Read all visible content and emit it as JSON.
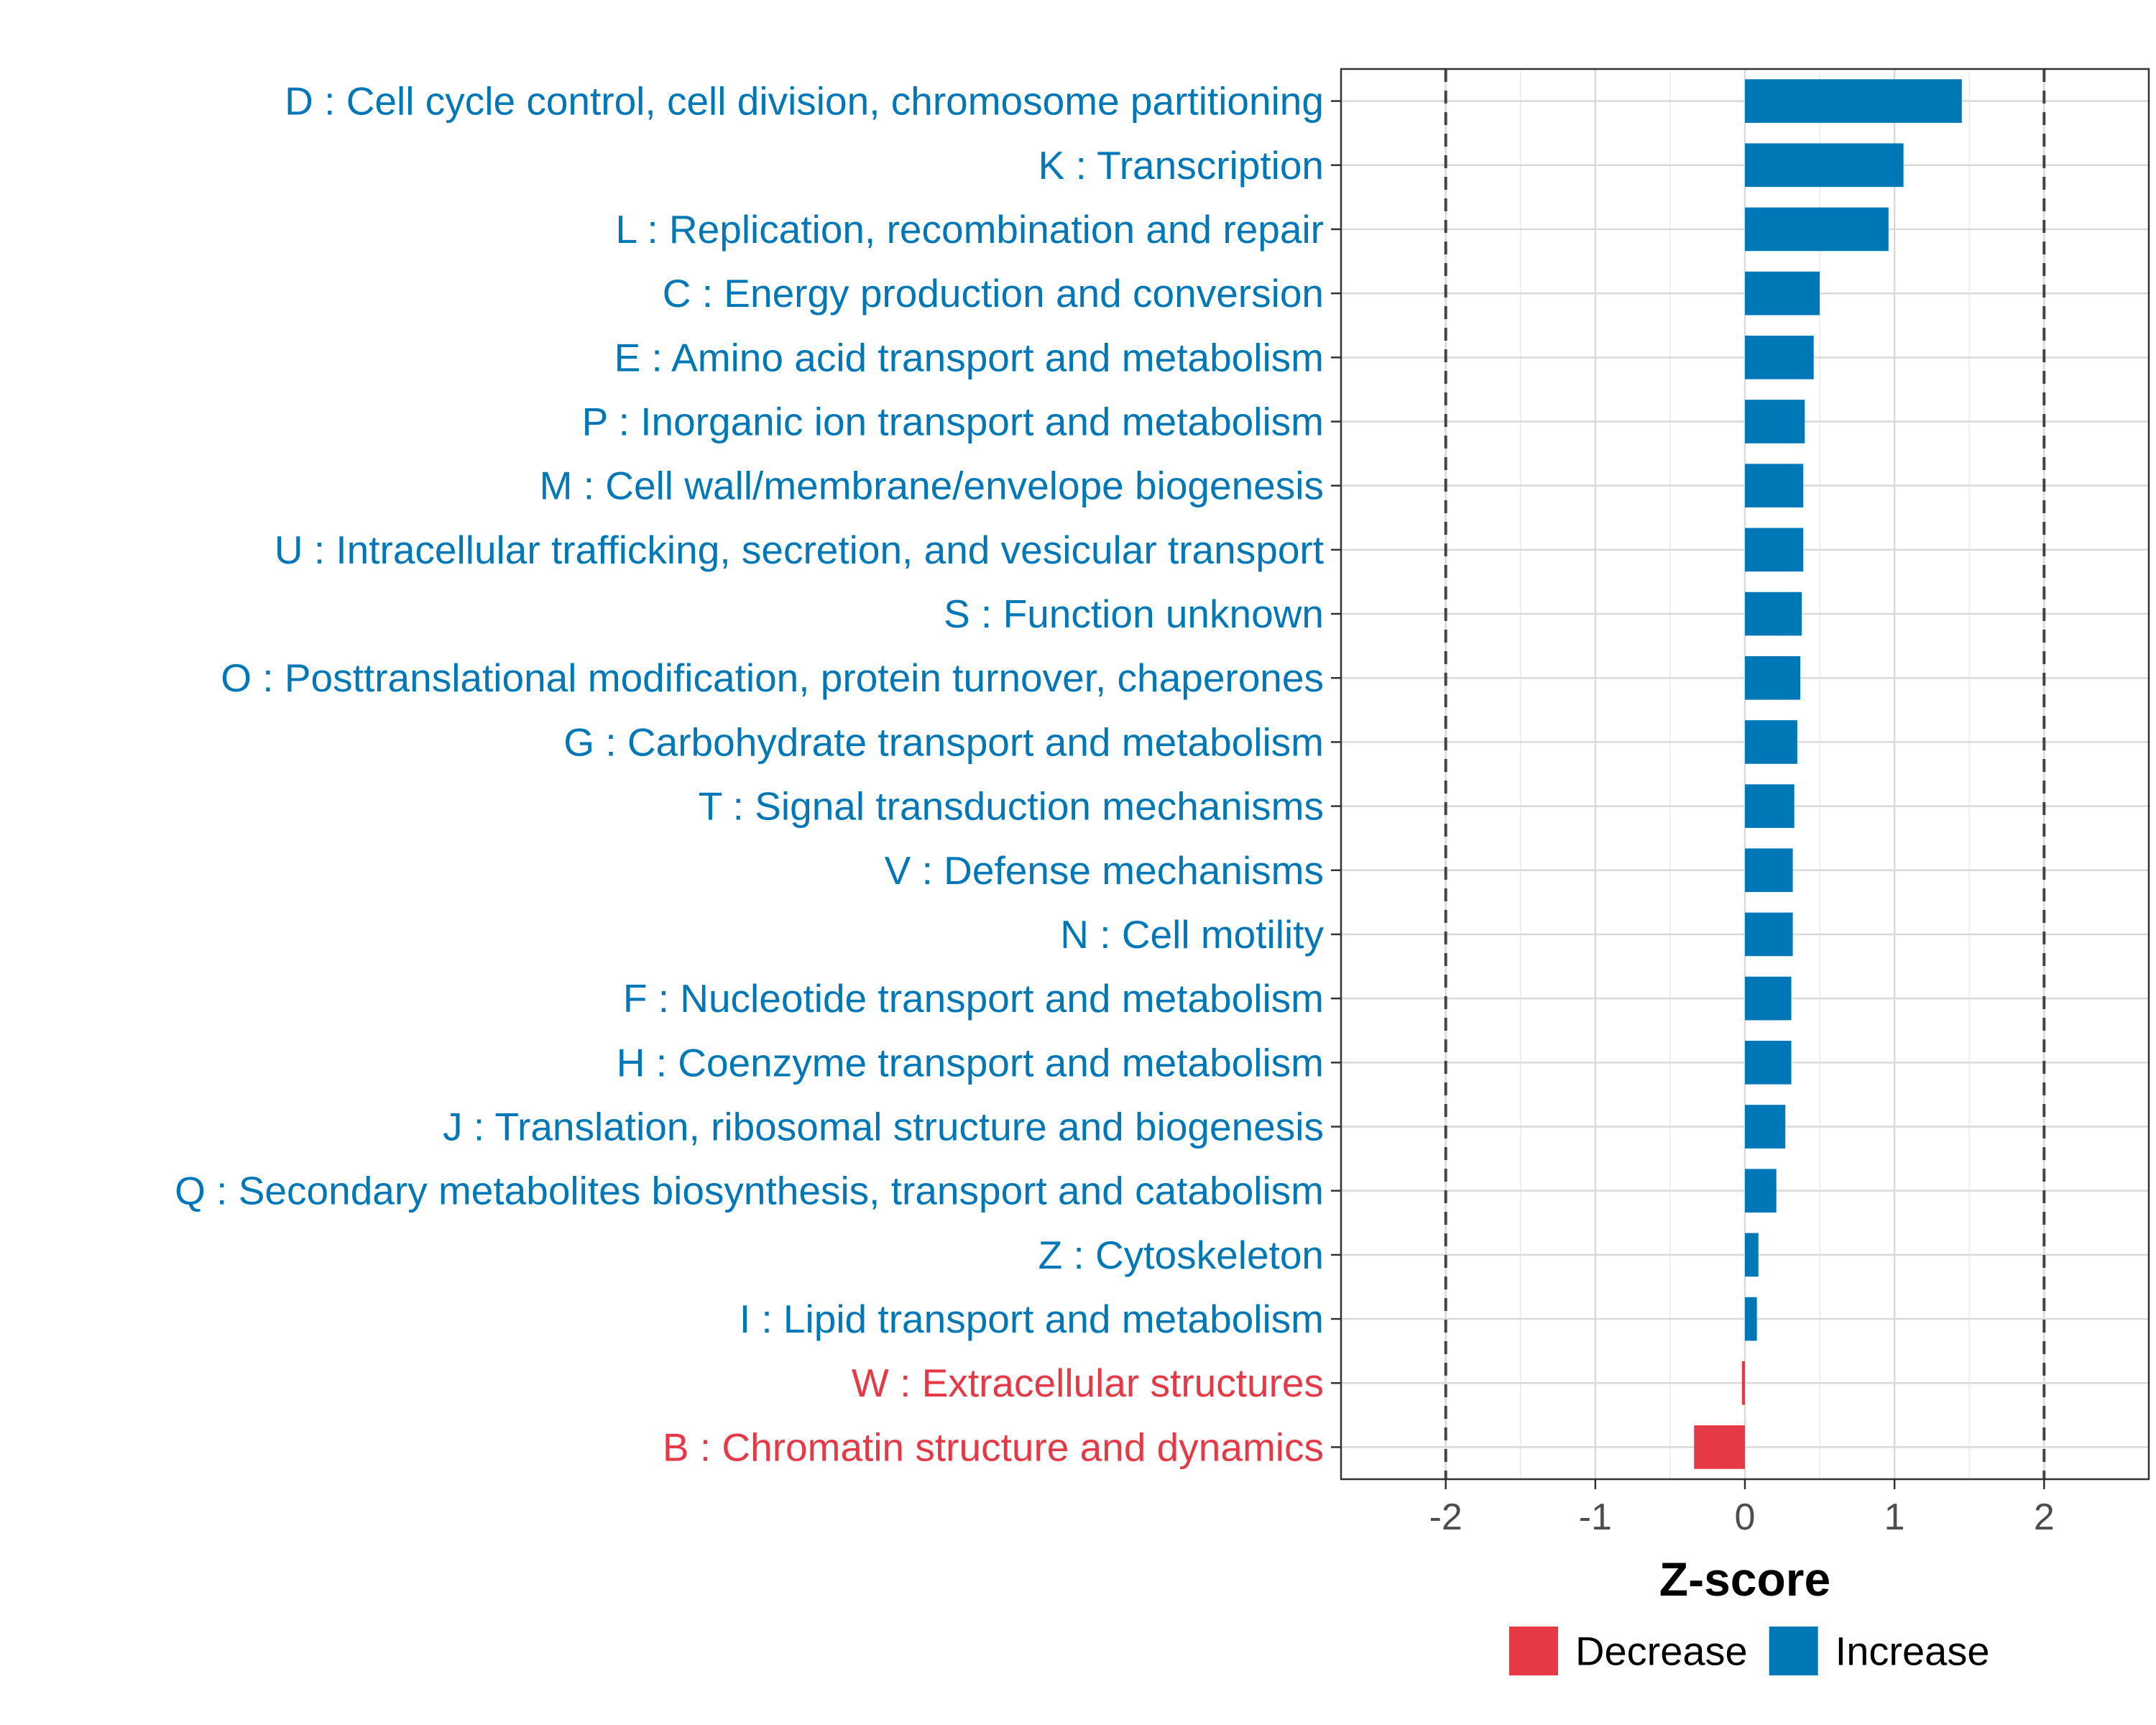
{
  "chart_data": {
    "type": "bar",
    "orientation": "horizontal",
    "xlabel": "Z-score",
    "xlim": [
      -2.7,
      2.7
    ],
    "xticks": [
      -2,
      -1,
      0,
      1,
      2
    ],
    "xtick_labels": [
      "-2",
      "-1",
      "0",
      "1",
      "2"
    ],
    "reference_lines": [
      -2,
      2
    ],
    "grid": true,
    "legend_position": "bottom",
    "legend": [
      {
        "label": "Decrease",
        "color": "#E63946"
      },
      {
        "label": "Increase",
        "color": "#0077B6"
      }
    ],
    "categories": [
      "D : Cell cycle control, cell division, chromosome partitioning",
      "K : Transcription",
      "L : Replication, recombination and repair",
      "C : Energy production and conversion",
      "E : Amino acid transport and metabolism",
      "P : Inorganic ion transport and metabolism",
      "M : Cell wall/membrane/envelope biogenesis",
      "U : Intracellular trafficking, secretion, and vesicular transport",
      "S : Function unknown",
      "O : Posttranslational modification, protein turnover, chaperones",
      "G : Carbohydrate transport and metabolism",
      "T : Signal transduction mechanisms",
      "V : Defense mechanisms",
      "N : Cell motility",
      "F : Nucleotide transport and metabolism",
      "H : Coenzyme transport and metabolism",
      "J : Translation, ribosomal structure and biogenesis",
      "Q : Secondary metabolites biosynthesis, transport and catabolism",
      "Z : Cytoskeleton",
      "I : Lipid transport and metabolism",
      "W : Extracellular structures",
      "B : Chromatin structure and dynamics"
    ],
    "values": [
      1.45,
      1.06,
      0.96,
      0.5,
      0.46,
      0.4,
      0.39,
      0.39,
      0.38,
      0.37,
      0.35,
      0.33,
      0.32,
      0.32,
      0.31,
      0.31,
      0.27,
      0.21,
      0.09,
      0.08,
      -0.02,
      -0.34
    ],
    "groups": [
      "Increase",
      "Increase",
      "Increase",
      "Increase",
      "Increase",
      "Increase",
      "Increase",
      "Increase",
      "Increase",
      "Increase",
      "Increase",
      "Increase",
      "Increase",
      "Increase",
      "Increase",
      "Increase",
      "Increase",
      "Increase",
      "Increase",
      "Increase",
      "Decrease",
      "Decrease"
    ]
  }
}
